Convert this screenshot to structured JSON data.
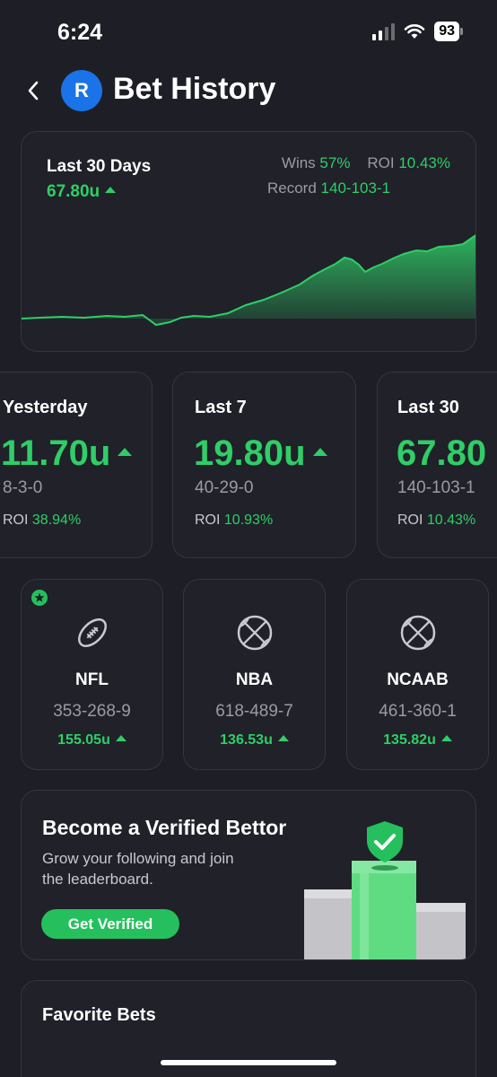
{
  "status_bar": {
    "time": "6:24",
    "battery": "93"
  },
  "header": {
    "logo_letter": "R",
    "title": "Bet History"
  },
  "summary": {
    "period": "Last 30 Days",
    "total_units": "67.80u",
    "wins_label": "Wins",
    "wins_value": "57%",
    "roi_label": "ROI",
    "roi_value": "10.43%",
    "record_label": "Record",
    "record_value": "140-103-1",
    "trend_color": "#2fce67"
  },
  "periods": [
    {
      "label": "Yesterday",
      "units": "11.70u",
      "record": "8-3-0",
      "roi_label": "ROI",
      "roi": "38.94%"
    },
    {
      "label": "Last 7",
      "units": "19.80u",
      "record": "40-29-0",
      "roi_label": "ROI",
      "roi": "10.93%"
    },
    {
      "label": "Last 30",
      "units": "67.80",
      "record": "140-103-1",
      "roi_label": "ROI",
      "roi": "10.43%"
    }
  ],
  "leagues": [
    {
      "name": "NFL",
      "record": "353-268-9",
      "units": "155.05u",
      "icon": "football-icon",
      "favorite": true
    },
    {
      "name": "NBA",
      "record": "618-489-7",
      "units": "136.53u",
      "icon": "basketball-icon",
      "favorite": false
    },
    {
      "name": "NCAAB",
      "record": "461-360-1",
      "units": "135.82u",
      "icon": "basketball-icon",
      "favorite": false
    }
  ],
  "promo": {
    "title": "Become a Verified Bettor",
    "text": "Grow your following and join the leaderboard.",
    "button": "Get Verified",
    "accent": "#25c05d"
  },
  "favorites": {
    "title": "Favorite Bets"
  }
}
